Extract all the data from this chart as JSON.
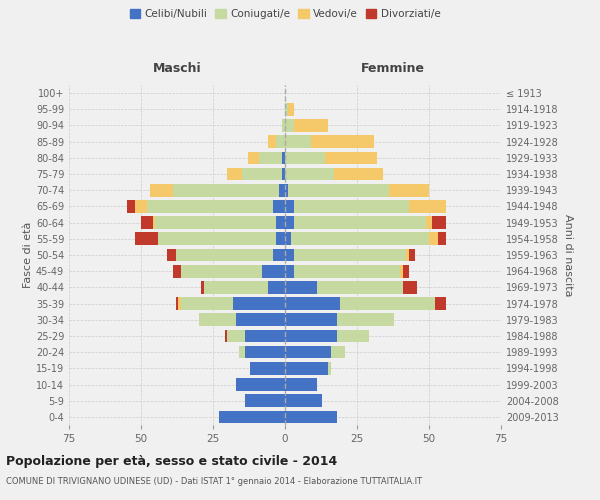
{
  "age_groups": [
    "0-4",
    "5-9",
    "10-14",
    "15-19",
    "20-24",
    "25-29",
    "30-34",
    "35-39",
    "40-44",
    "45-49",
    "50-54",
    "55-59",
    "60-64",
    "65-69",
    "70-74",
    "75-79",
    "80-84",
    "85-89",
    "90-94",
    "95-99",
    "100+"
  ],
  "birth_years": [
    "2009-2013",
    "2004-2008",
    "1999-2003",
    "1994-1998",
    "1989-1993",
    "1984-1988",
    "1979-1983",
    "1974-1978",
    "1969-1973",
    "1964-1968",
    "1959-1963",
    "1954-1958",
    "1949-1953",
    "1944-1948",
    "1939-1943",
    "1934-1938",
    "1929-1933",
    "1924-1928",
    "1919-1923",
    "1914-1918",
    "≤ 1913"
  ],
  "male": {
    "celibi": [
      23,
      14,
      17,
      12,
      14,
      14,
      17,
      18,
      6,
      8,
      4,
      3,
      3,
      4,
      2,
      1,
      1,
      0,
      0,
      0,
      0
    ],
    "coniugati": [
      0,
      0,
      0,
      0,
      2,
      6,
      13,
      18,
      22,
      28,
      34,
      41,
      42,
      44,
      37,
      14,
      8,
      3,
      1,
      0,
      0
    ],
    "vedovi": [
      0,
      0,
      0,
      0,
      0,
      0,
      0,
      1,
      0,
      0,
      0,
      0,
      1,
      4,
      8,
      5,
      4,
      3,
      0,
      0,
      0
    ],
    "divorziati": [
      0,
      0,
      0,
      0,
      0,
      1,
      0,
      1,
      1,
      3,
      3,
      8,
      4,
      3,
      0,
      0,
      0,
      0,
      0,
      0,
      0
    ]
  },
  "female": {
    "nubili": [
      18,
      13,
      11,
      15,
      16,
      18,
      18,
      19,
      11,
      3,
      3,
      2,
      3,
      3,
      1,
      0,
      0,
      0,
      0,
      0,
      0
    ],
    "coniugate": [
      0,
      0,
      0,
      1,
      5,
      11,
      20,
      33,
      30,
      37,
      39,
      48,
      46,
      40,
      35,
      17,
      14,
      9,
      3,
      1,
      0
    ],
    "vedove": [
      0,
      0,
      0,
      0,
      0,
      0,
      0,
      0,
      0,
      1,
      1,
      3,
      2,
      13,
      14,
      17,
      18,
      22,
      12,
      2,
      0
    ],
    "divorziate": [
      0,
      0,
      0,
      0,
      0,
      0,
      0,
      4,
      5,
      2,
      2,
      3,
      5,
      0,
      0,
      0,
      0,
      0,
      0,
      0,
      0
    ]
  },
  "colors": {
    "celibi": "#4472c4",
    "coniugati": "#c5d9a0",
    "vedovi": "#f5c96a",
    "divorziati": "#c0392b"
  },
  "title": "Popolazione per età, sesso e stato civile - 2014",
  "subtitle": "COMUNE DI TRIVIGNANO UDINESE (UD) - Dati ISTAT 1° gennaio 2014 - Elaborazione TUTTAITALIA.IT",
  "xlabel_left": "Maschi",
  "xlabel_right": "Femmine",
  "ylabel_left": "Fasce di età",
  "ylabel_right": "Anni di nascita",
  "xlim": 75,
  "bg_color": "#f0f0f0",
  "legend_labels": [
    "Celibi/Nubili",
    "Coniugati/e",
    "Vedovi/e",
    "Divorziati/e"
  ]
}
